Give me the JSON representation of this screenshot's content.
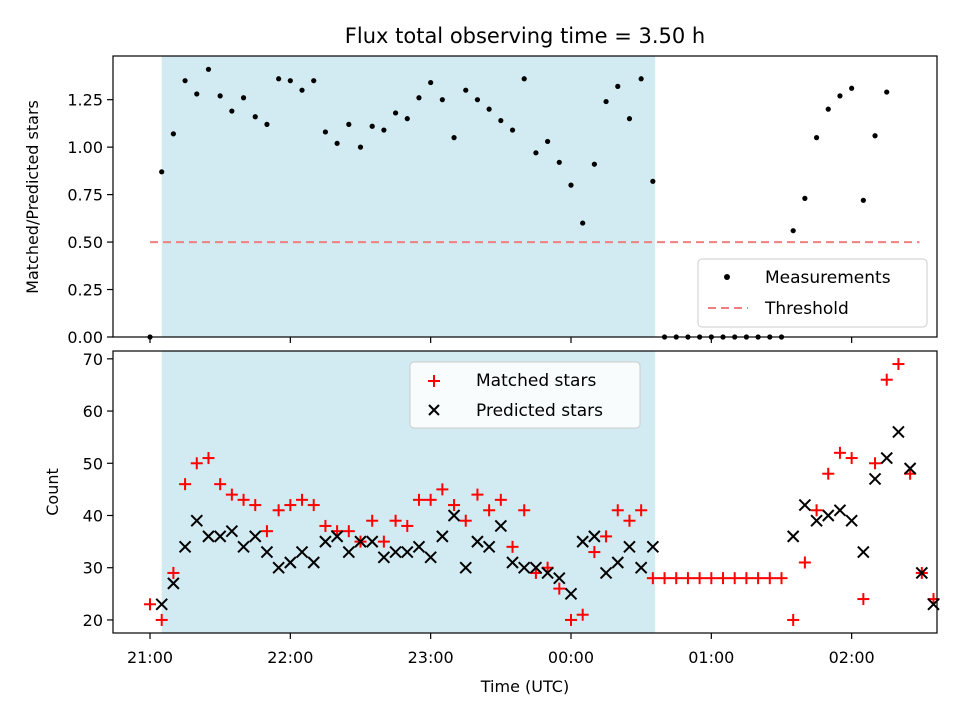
{
  "title": "Flux total observing time = 3.50 h",
  "xlabel": "Time (UTC)",
  "xticks": [
    "21:00",
    "22:00",
    "23:00",
    "00:00",
    "01:00",
    "02:00"
  ],
  "shading_color": "#add8e6",
  "chart_data": [
    {
      "type": "scatter",
      "ylabel": "Matched/Predicted stars",
      "ylim": [
        0,
        1.48
      ],
      "yticks": [
        "0.00",
        "0.25",
        "0.50",
        "0.75",
        "1.00",
        "1.25"
      ],
      "legend_position": "lower-right",
      "series": [
        {
          "name": "Measurements",
          "marker": "dot",
          "color": "#000000",
          "x": [
            0,
            5,
            10,
            15,
            20,
            25,
            30,
            35,
            40,
            45,
            50,
            55,
            60,
            65,
            70,
            75,
            80,
            85,
            90,
            95,
            100,
            105,
            110,
            115,
            120,
            125,
            130,
            135,
            140,
            145,
            150,
            155,
            160,
            165,
            170,
            175,
            180,
            185,
            190,
            195,
            200,
            205,
            210,
            215,
            220,
            225,
            230,
            235,
            240,
            245,
            250,
            255,
            260,
            265,
            270,
            275,
            280,
            285,
            290,
            295,
            300,
            305,
            310,
            315
          ],
          "y": [
            0.0,
            0.87,
            1.07,
            1.35,
            1.28,
            1.41,
            1.27,
            1.19,
            1.26,
            1.16,
            1.12,
            1.36,
            1.35,
            1.3,
            1.35,
            1.08,
            1.02,
            1.12,
            1.0,
            1.11,
            1.09,
            1.18,
            1.15,
            1.26,
            1.34,
            1.25,
            1.05,
            1.3,
            1.25,
            1.2,
            1.14,
            1.09,
            1.36,
            0.97,
            1.03,
            0.92,
            0.8,
            0.6,
            0.91,
            1.24,
            1.32,
            1.15,
            1.36,
            0.82,
            0.0,
            0.0,
            0.0,
            0.0,
            0.0,
            0.0,
            0.0,
            0.0,
            0.0,
            0.0,
            0.0,
            0.56,
            0.73,
            1.05,
            1.2,
            1.27,
            1.31,
            0.72,
            1.06,
            1.29
          ]
        },
        {
          "name": "Threshold",
          "marker": "dashed-line",
          "color": "#f08080",
          "x": [
            0,
            329
          ],
          "y": [
            0.5,
            0.5
          ]
        }
      ]
    },
    {
      "type": "scatter",
      "ylabel": "Count",
      "ylim": [
        17.5,
        71.5
      ],
      "yticks": [
        "20",
        "30",
        "40",
        "50",
        "60",
        "70"
      ],
      "legend_position": "top-center",
      "series": [
        {
          "name": "Matched stars",
          "marker": "plus",
          "color": "#ff0000",
          "x": [
            0,
            5,
            10,
            15,
            20,
            25,
            30,
            35,
            40,
            45,
            50,
            55,
            60,
            65,
            70,
            75,
            80,
            85,
            90,
            95,
            100,
            105,
            110,
            115,
            120,
            125,
            130,
            135,
            140,
            145,
            150,
            155,
            160,
            165,
            170,
            175,
            180,
            185,
            190,
            195,
            200,
            205,
            210,
            215,
            220,
            225,
            230,
            235,
            240,
            245,
            250,
            255,
            260,
            265,
            270,
            275,
            280,
            285,
            290,
            295,
            300,
            305,
            310,
            315,
            320,
            325
          ],
          "y": [
            23,
            20,
            29,
            46,
            50,
            51,
            46,
            44,
            43,
            42,
            37,
            41,
            42,
            43,
            42,
            38,
            37,
            37,
            35,
            39,
            35,
            39,
            38,
            43,
            43,
            45,
            42,
            39,
            44,
            41,
            43,
            34,
            41,
            29,
            30,
            26,
            20,
            21,
            33,
            36,
            41,
            39,
            41,
            28,
            28,
            28,
            28,
            28,
            28,
            28,
            28,
            28,
            28,
            28,
            28,
            20,
            31,
            41,
            48,
            52,
            51,
            24,
            50,
            66,
            69,
            48
          ]
        },
        {
          "name": "Predicted stars",
          "marker": "cross",
          "color": "#000000",
          "x": [
            5,
            10,
            15,
            20,
            25,
            30,
            35,
            40,
            45,
            50,
            55,
            60,
            65,
            70,
            75,
            80,
            85,
            90,
            95,
            100,
            105,
            110,
            115,
            120,
            125,
            130,
            135,
            140,
            145,
            150,
            155,
            160,
            165,
            170,
            175,
            180,
            185,
            190,
            195,
            200,
            205,
            210,
            215,
            275,
            280,
            285,
            290,
            295,
            300,
            305,
            310,
            315,
            320,
            325,
            330,
            335
          ],
          "y": [
            23,
            27,
            34,
            39,
            36,
            36,
            37,
            34,
            36,
            33,
            30,
            31,
            33,
            31,
            35,
            36,
            33,
            35,
            35,
            32,
            33,
            33,
            34,
            32,
            36,
            40,
            30,
            35,
            34,
            38,
            31,
            30,
            30,
            29,
            28,
            25,
            35,
            36,
            29,
            31,
            34,
            30,
            34,
            36,
            42,
            39,
            40,
            41,
            39,
            33,
            47,
            51,
            56,
            49,
            29,
            23
          ]
        }
      ],
      "extra_matched": {
        "x": [
          330,
          335
        ],
        "y": [
          29,
          24
        ]
      }
    }
  ],
  "observing_window_minutes": [
    5,
    216
  ]
}
